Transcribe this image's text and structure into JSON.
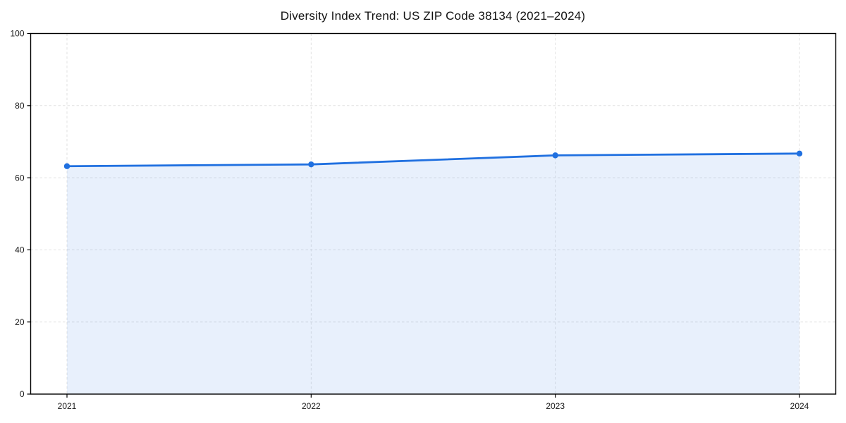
{
  "chart_data": {
    "type": "area",
    "title": "Diversity Index Trend: US ZIP Code 38134 (2021–2024)",
    "categories": [
      "2021",
      "2022",
      "2023",
      "2024"
    ],
    "series": [
      {
        "name": "Diversity Index",
        "values": [
          63.2,
          63.7,
          66.2,
          66.7
        ]
      }
    ],
    "xlabel": "",
    "ylabel": "",
    "ylim": [
      0,
      100
    ],
    "yticks": [
      0,
      20,
      40,
      60,
      80,
      100
    ],
    "grid": "dashed-both-axes",
    "legend_position": "none",
    "colors": {
      "line": "#2070e0",
      "marker": "#2070e0",
      "area_fill": "rgba(32,112,224,0.10)",
      "grid": "#e2e2e2",
      "spine": "#000000",
      "tick_label": "#1a1a1a",
      "title": "#111111",
      "background": "#ffffff"
    }
  }
}
